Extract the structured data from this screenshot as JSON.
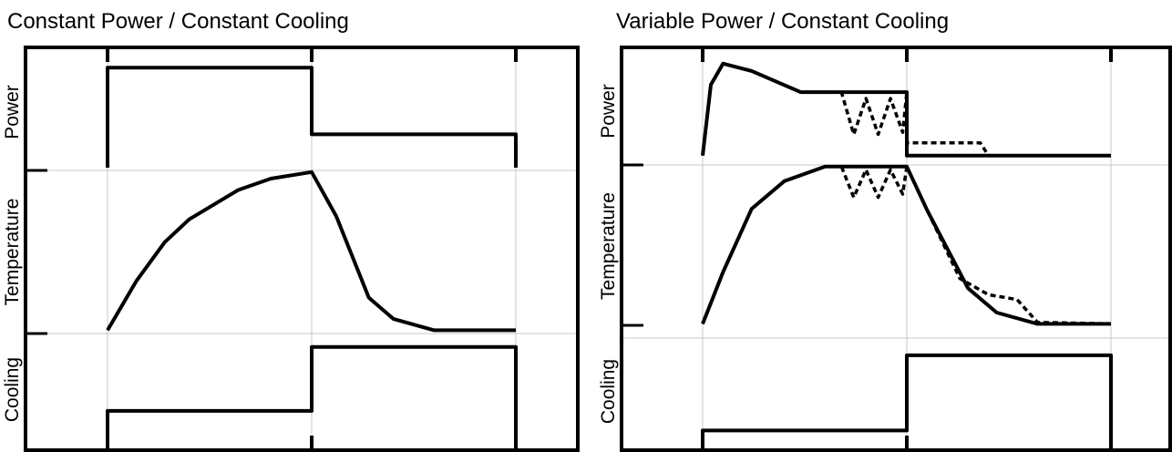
{
  "chart_data": [
    {
      "type": "line",
      "title": "Constant Power / Constant Cooling",
      "ylabels": [
        "Power",
        "Temperature",
        "Cooling"
      ],
      "grid": true,
      "xlim": [
        0,
        10
      ],
      "series": [
        {
          "panel": "Power",
          "ylim": [
            0,
            1
          ],
          "points": [
            [
              0,
              0
            ],
            [
              0,
              0.9
            ],
            [
              5,
              0.9
            ],
            [
              5,
              0.3
            ],
            [
              10,
              0.3
            ],
            [
              10,
              0
            ]
          ]
        },
        {
          "panel": "Temperature",
          "ylim": [
            0,
            1
          ],
          "points": [
            [
              0,
              0.02
            ],
            [
              0.7,
              0.32
            ],
            [
              1.4,
              0.56
            ],
            [
              2.0,
              0.7
            ],
            [
              3.2,
              0.88
            ],
            [
              4.0,
              0.95
            ],
            [
              5.0,
              0.99
            ],
            [
              5.6,
              0.72
            ],
            [
              6.4,
              0.22
            ],
            [
              7.0,
              0.09
            ],
            [
              8.0,
              0.02
            ],
            [
              10,
              0.02
            ]
          ]
        },
        {
          "panel": "Cooling",
          "ylim": [
            0,
            1
          ],
          "points": [
            [
              0,
              0
            ],
            [
              0,
              0.3
            ],
            [
              5,
              0.3
            ],
            [
              5,
              0.9
            ],
            [
              10,
              0.9
            ],
            [
              10,
              0
            ]
          ]
        }
      ]
    },
    {
      "type": "line",
      "title": "Variable Power / Constant Cooling",
      "ylabels": [
        "Power",
        "Temperature",
        "Cooling"
      ],
      "grid": true,
      "xlim": [
        0,
        10
      ],
      "series": [
        {
          "panel": "Power",
          "ylim": [
            0,
            1
          ],
          "style": "solid",
          "points": [
            [
              0,
              0.08
            ],
            [
              0.2,
              0.75
            ],
            [
              0.5,
              0.95
            ],
            [
              1.2,
              0.88
            ],
            [
              2.4,
              0.68
            ],
            [
              5.0,
              0.68
            ],
            [
              5.0,
              0.08
            ],
            [
              10,
              0.08
            ]
          ]
        },
        {
          "panel": "Power",
          "ylim": [
            0,
            1
          ],
          "style": "dashed",
          "points": [
            [
              0,
              0.08
            ],
            [
              0.2,
              0.75
            ],
            [
              0.5,
              0.95
            ],
            [
              1.2,
              0.88
            ],
            [
              2.4,
              0.68
            ],
            [
              3.4,
              0.68
            ],
            [
              3.7,
              0.28
            ],
            [
              4.0,
              0.62
            ],
            [
              4.3,
              0.28
            ],
            [
              4.6,
              0.62
            ],
            [
              4.9,
              0.3
            ],
            [
              5.0,
              0.68
            ],
            [
              5.0,
              0.2
            ],
            [
              6.8,
              0.2
            ],
            [
              7.0,
              0.08
            ],
            [
              10,
              0.08
            ]
          ]
        },
        {
          "panel": "Temperature",
          "ylim": [
            0,
            1
          ],
          "style": "solid",
          "points": [
            [
              0,
              0.02
            ],
            [
              0.5,
              0.34
            ],
            [
              1.2,
              0.73
            ],
            [
              2.0,
              0.9
            ],
            [
              3.0,
              0.99
            ],
            [
              5.0,
              0.99
            ],
            [
              5.5,
              0.72
            ],
            [
              6.5,
              0.24
            ],
            [
              7.2,
              0.09
            ],
            [
              8.2,
              0.02
            ],
            [
              10,
              0.02
            ]
          ]
        },
        {
          "panel": "Temperature",
          "ylim": [
            0,
            1
          ],
          "style": "dashed",
          "points": [
            [
              0,
              0.02
            ],
            [
              0.5,
              0.34
            ],
            [
              1.2,
              0.73
            ],
            [
              2.0,
              0.9
            ],
            [
              3.0,
              0.99
            ],
            [
              3.4,
              0.99
            ],
            [
              3.7,
              0.8
            ],
            [
              4.0,
              0.97
            ],
            [
              4.3,
              0.8
            ],
            [
              4.6,
              0.97
            ],
            [
              4.9,
              0.82
            ],
            [
              5.0,
              0.99
            ],
            [
              5.5,
              0.72
            ],
            [
              6.3,
              0.3
            ],
            [
              7.0,
              0.2
            ],
            [
              7.7,
              0.17
            ],
            [
              8.2,
              0.03
            ],
            [
              10,
              0.02
            ]
          ]
        },
        {
          "panel": "Cooling",
          "ylim": [
            0,
            1
          ],
          "style": "solid",
          "points": [
            [
              0,
              0
            ],
            [
              0,
              0.12
            ],
            [
              5,
              0.12
            ],
            [
              5,
              0.85
            ],
            [
              10,
              0.85
            ],
            [
              10,
              0
            ]
          ]
        }
      ]
    }
  ]
}
